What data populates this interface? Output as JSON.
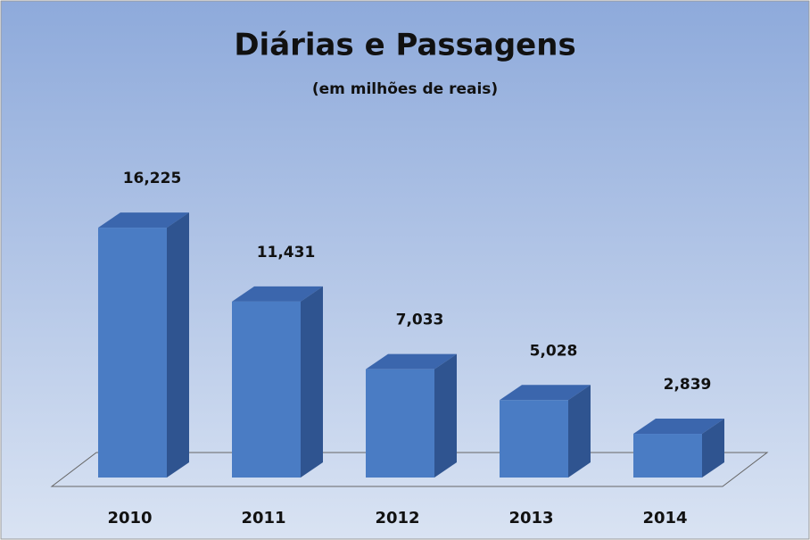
{
  "chart_data": {
    "type": "bar3d",
    "title": "Diárias e Passagens",
    "subtitle": "(em milhões de reais)",
    "categories": [
      "2010",
      "2011",
      "2012",
      "2013",
      "2014"
    ],
    "values": [
      16.225,
      11.431,
      7.033,
      5.028,
      2.839
    ],
    "value_labels": [
      "16,225",
      "11,431",
      "7,033",
      "5,028",
      "2,839"
    ],
    "color": "#4a7cc4",
    "ylim": [
      0,
      20
    ]
  }
}
